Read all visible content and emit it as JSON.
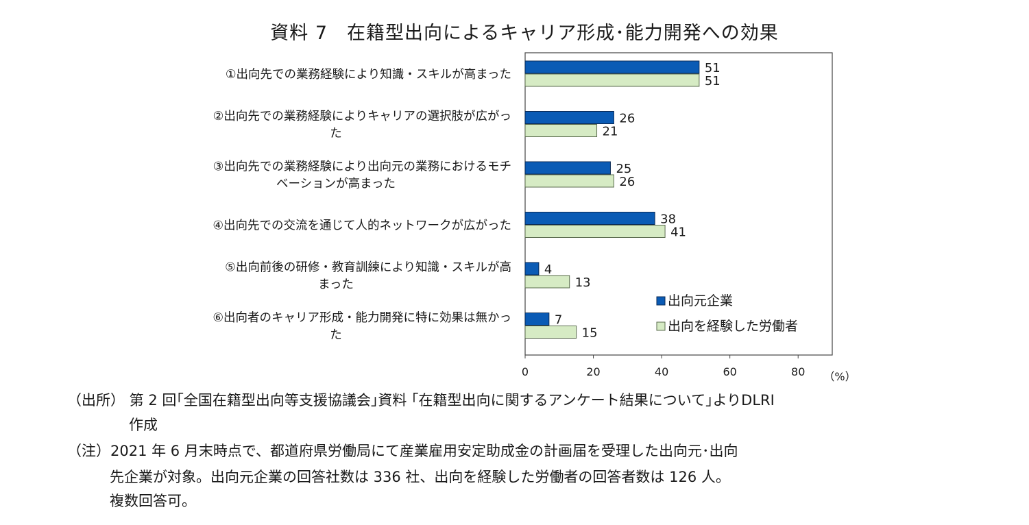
{
  "chart_data": {
    "type": "bar",
    "orientation": "horizontal",
    "title": "資料 7　在籍型出向によるキャリア形成･能力開発への効果",
    "categories": [
      [
        "①出向先での業務経験により知識・スキルが高まった"
      ],
      [
        "②出向先での業務経験によりキャリアの選択肢が広がっ",
        "た"
      ],
      [
        "③出向先での業務経験により出向元の業務におけるモチ",
        "ベーションが高まった"
      ],
      [
        "④出向先での交流を通じて人的ネットワークが広がった"
      ],
      [
        "⑤出向前後の研修・教育訓練により知識・スキルが高",
        "まった"
      ],
      [
        "⑥出向者のキャリア形成・能力開発に特に効果は無かっ",
        "た"
      ]
    ],
    "series": [
      {
        "name": "出向元企業",
        "color": "#0a5bb5",
        "values": [
          51,
          26,
          25,
          38,
          4,
          7
        ]
      },
      {
        "name": "出向を経験した労働者",
        "color": "#d6ebc4",
        "values": [
          51,
          21,
          26,
          41,
          13,
          15
        ]
      }
    ],
    "xlim": [
      0,
      90
    ],
    "xticks": [
      0,
      20,
      40,
      60,
      80
    ],
    "xunit": "（%）",
    "legend_position": "bottom-right",
    "grid": false
  },
  "notes": {
    "source_line1": "（出所）  第 2 回｢全国在籍型出向等支援協議会｣資料  ｢在籍型出向に関するアンケート結果について｣よりDLRI",
    "source_line2": "作成",
    "note_line1": "（注）2021 年 6 月末時点で、都道府県労働局にて産業雇用安定助成金の計画届を受理した出向元･出向",
    "note_line2": "先企業が対象。出向元企業の回答社数は 336 社、出向を経験した労働者の回答者数は 126 人。",
    "note_line3": "複数回答可。"
  }
}
